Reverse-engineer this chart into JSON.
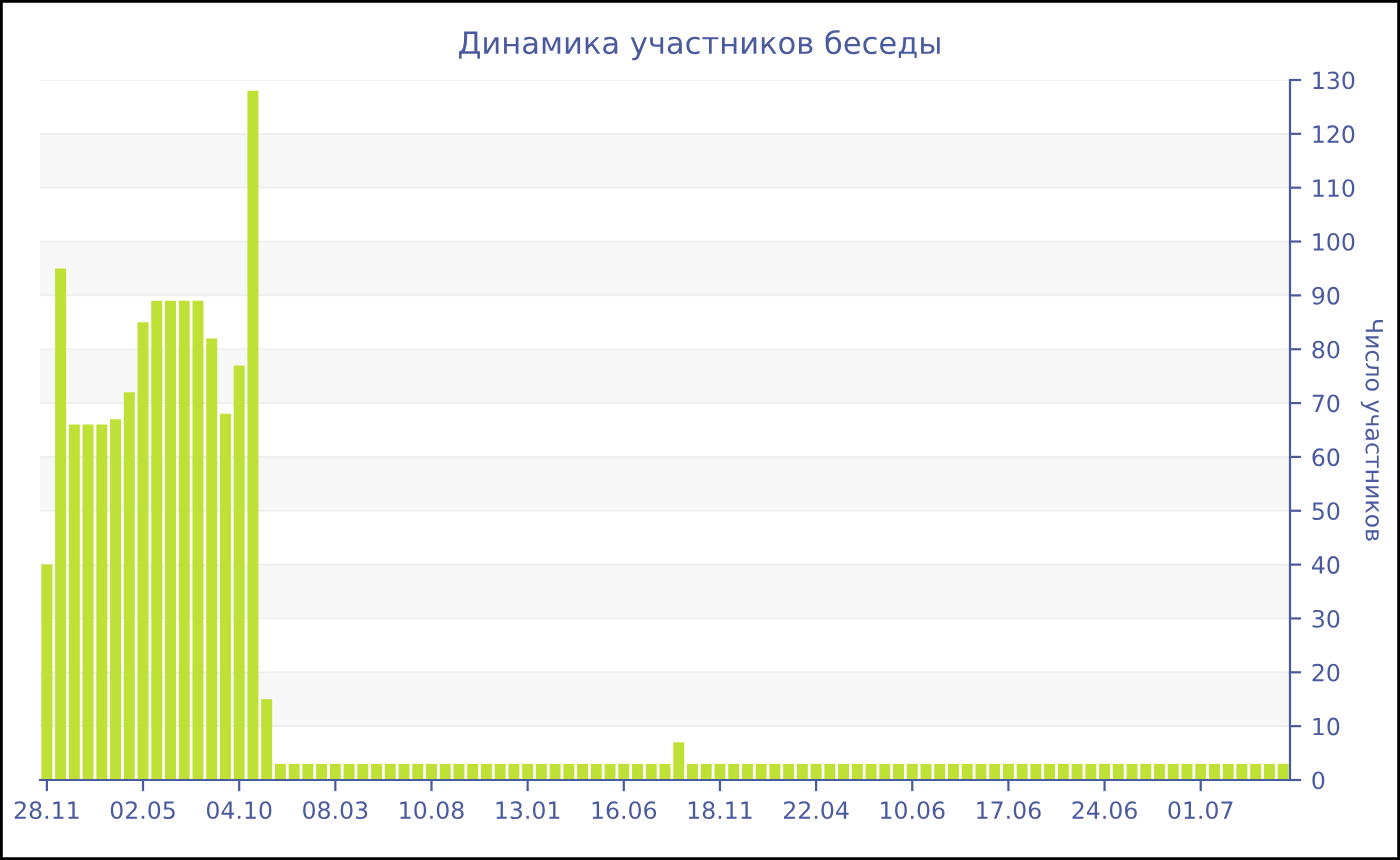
{
  "chart_data": {
    "type": "bar",
    "title": "Динамика участников беседы",
    "ylabel": "Число участников",
    "categories": [
      "28.11",
      null,
      null,
      null,
      null,
      null,
      null,
      "02.05",
      null,
      null,
      null,
      null,
      null,
      null,
      "04.10",
      null,
      null,
      null,
      null,
      null,
      null,
      "08.03",
      null,
      null,
      null,
      null,
      null,
      null,
      "10.08",
      null,
      null,
      null,
      null,
      null,
      null,
      "13.01",
      null,
      null,
      null,
      null,
      null,
      null,
      "16.06",
      null,
      null,
      null,
      null,
      null,
      null,
      "18.11",
      null,
      null,
      null,
      null,
      null,
      null,
      "22.04",
      null,
      null,
      null,
      null,
      null,
      null,
      "10.06",
      null,
      null,
      null,
      null,
      null,
      null,
      "17.06",
      null,
      null,
      null,
      null,
      null,
      null,
      "24.06",
      null,
      null,
      null,
      null,
      null,
      null,
      "01.07",
      null,
      null,
      null,
      null,
      null,
      null
    ],
    "values": [
      40,
      95,
      66,
      66,
      66,
      67,
      72,
      85,
      89,
      89,
      89,
      89,
      82,
      68,
      77,
      128,
      15,
      3,
      3,
      3,
      3,
      3,
      3,
      3,
      3,
      3,
      3,
      3,
      3,
      3,
      3,
      3,
      3,
      3,
      3,
      3,
      3,
      3,
      3,
      3,
      3,
      3,
      3,
      3,
      3,
      3,
      7,
      3,
      3,
      3,
      3,
      3,
      3,
      3,
      3,
      3,
      3,
      3,
      3,
      3,
      3,
      3,
      3,
      3,
      3,
      3,
      3,
      3,
      3,
      3,
      3,
      3,
      3,
      3,
      3,
      3,
      3,
      3,
      3,
      3,
      3,
      3,
      3,
      3,
      3,
      3,
      3,
      3,
      3,
      3,
      3
    ],
    "color": "#bfe034",
    "ylim": [
      0,
      130
    ],
    "yticks": [
      0,
      10,
      20,
      30,
      40,
      50,
      60,
      70,
      80,
      90,
      100,
      110,
      120,
      130
    ],
    "grid": "y",
    "legend": false
  }
}
